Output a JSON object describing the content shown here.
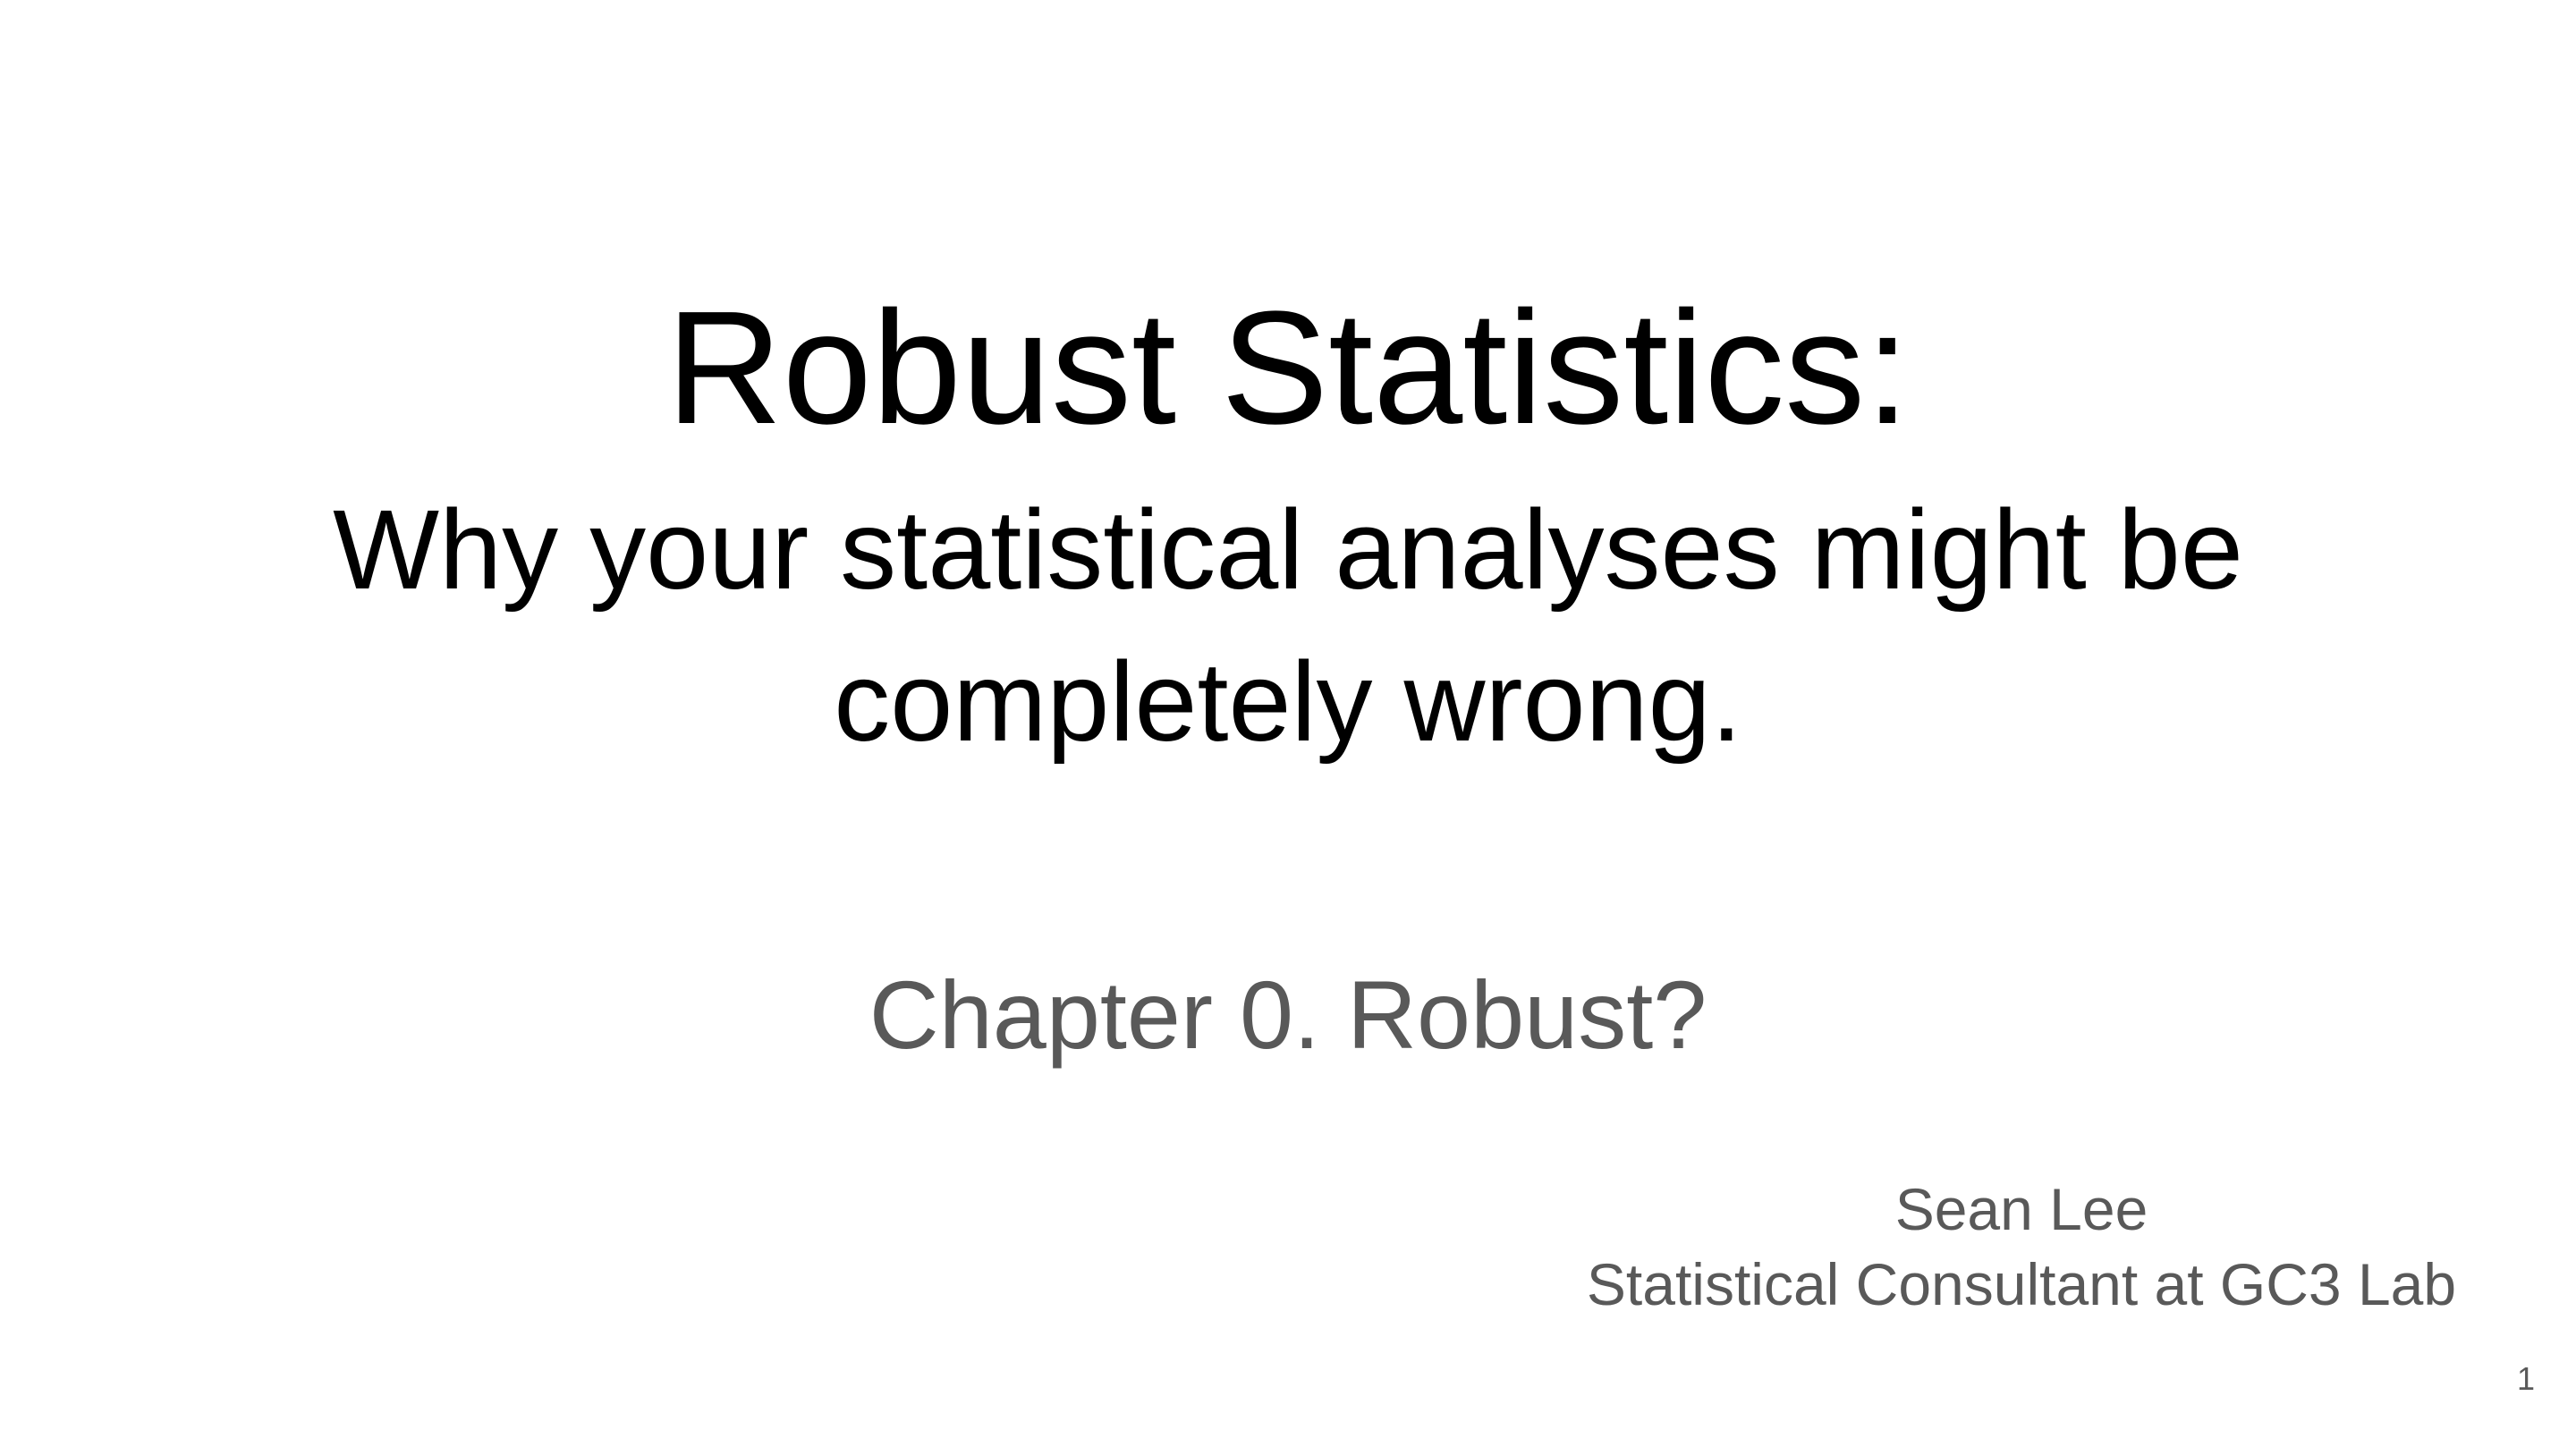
{
  "slide": {
    "title": "Robust Statistics:",
    "subtitle_line1": "Why your statistical analyses might be",
    "subtitle_line2": "completely wrong.",
    "chapter": "Chapter 0. Robust?",
    "author": {
      "name": "Sean Lee",
      "role": "Statistical Consultant at GC3 Lab"
    },
    "page_number": "1"
  },
  "colors": {
    "title_text": "#000000",
    "secondary_text": "#595959",
    "background": "#ffffff"
  }
}
